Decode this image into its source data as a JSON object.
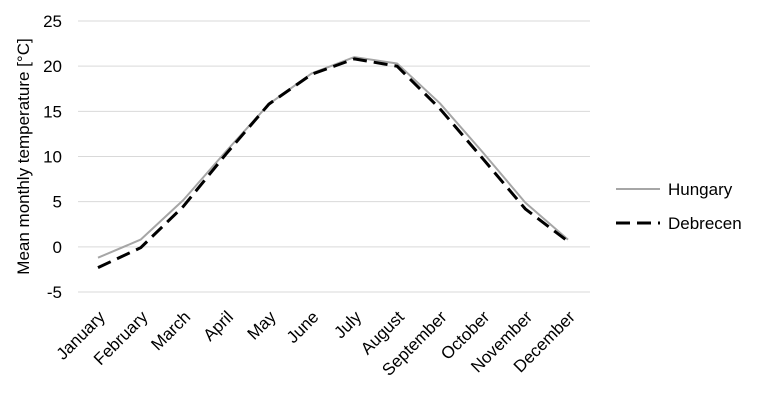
{
  "chart_data": {
    "type": "line",
    "categories": [
      "January",
      "February",
      "March",
      "April",
      "May",
      "June",
      "July",
      "August",
      "September",
      "October",
      "November",
      "December"
    ],
    "ylabel": "Mean monthly temperature [°C]",
    "ylim": [
      -5,
      25
    ],
    "yticks": [
      -5,
      0,
      5,
      10,
      15,
      20,
      25
    ],
    "grid": true,
    "legend_position": "right",
    "series": [
      {
        "name": "Hungary",
        "values": [
          -1.2,
          0.8,
          5.2,
          10.6,
          15.8,
          19.2,
          21.0,
          20.3,
          15.9,
          10.5,
          4.9,
          0.8
        ],
        "color": "#a6a6a6",
        "style": "solid"
      },
      {
        "name": "Debrecen",
        "values": [
          -2.3,
          -0.1,
          4.5,
          10.3,
          15.8,
          19.1,
          20.8,
          20.0,
          15.3,
          9.8,
          4.2,
          0.6
        ],
        "color": "#000000",
        "style": "dashed"
      }
    ]
  }
}
